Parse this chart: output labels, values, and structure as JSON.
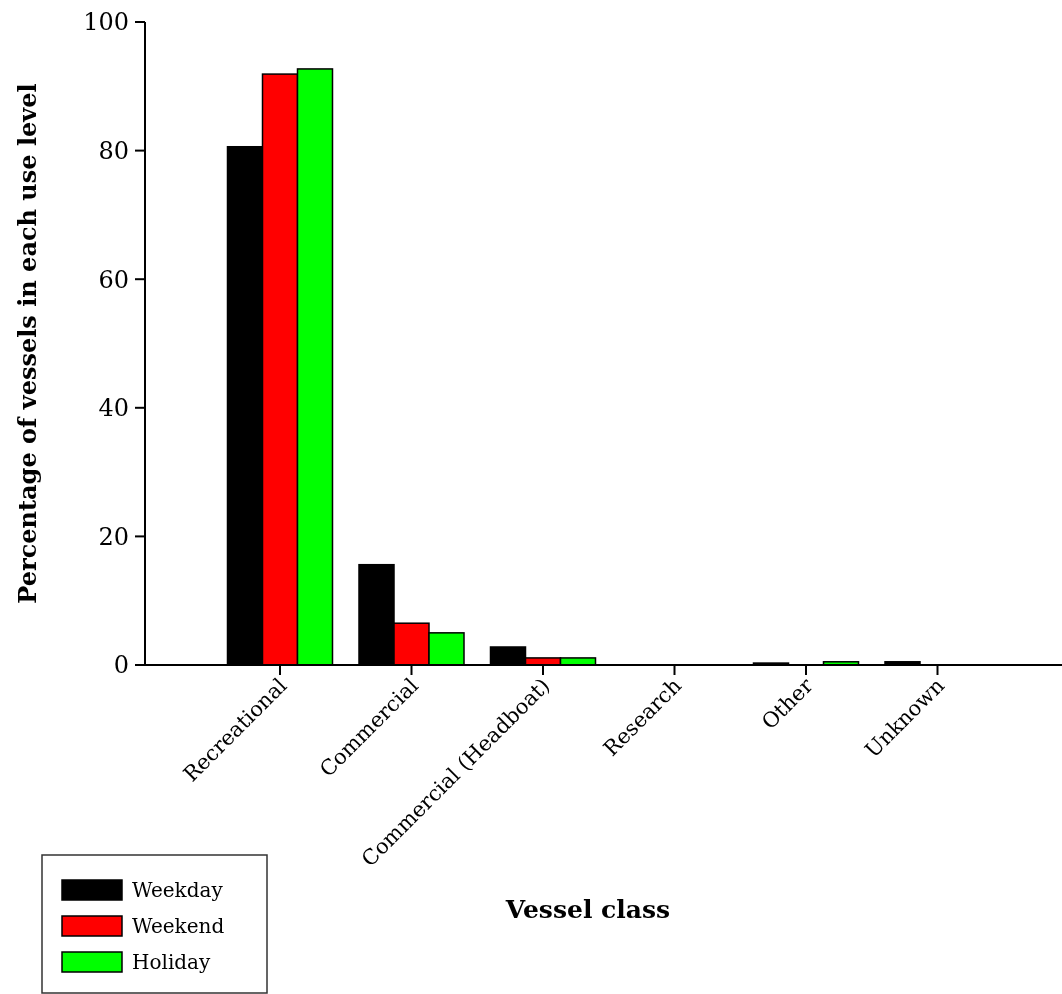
{
  "chart_data": {
    "type": "bar",
    "xlabel": "Vessel class",
    "ylabel": "Percentage of vessels in each use level",
    "categories": [
      "Recreational",
      "Commercial",
      "Commercial (Headboat)",
      "Research",
      "Other",
      "Unknown"
    ],
    "series": [
      {
        "name": "Weekday",
        "color": "#000000",
        "values": [
          80.6,
          15.6,
          2.8,
          0,
          0.3,
          0.5
        ]
      },
      {
        "name": "Weekend",
        "color": "#ff0000",
        "values": [
          91.9,
          6.5,
          1.1,
          0,
          0,
          0
        ]
      },
      {
        "name": "Holiday",
        "color": "#00ff00",
        "values": [
          92.7,
          5.0,
          1.1,
          0,
          0.5,
          0
        ]
      }
    ],
    "ylim": [
      0,
      100
    ],
    "yticks": [
      0,
      20,
      40,
      60,
      80,
      100
    ],
    "grid": false,
    "legend": "bottom left"
  }
}
